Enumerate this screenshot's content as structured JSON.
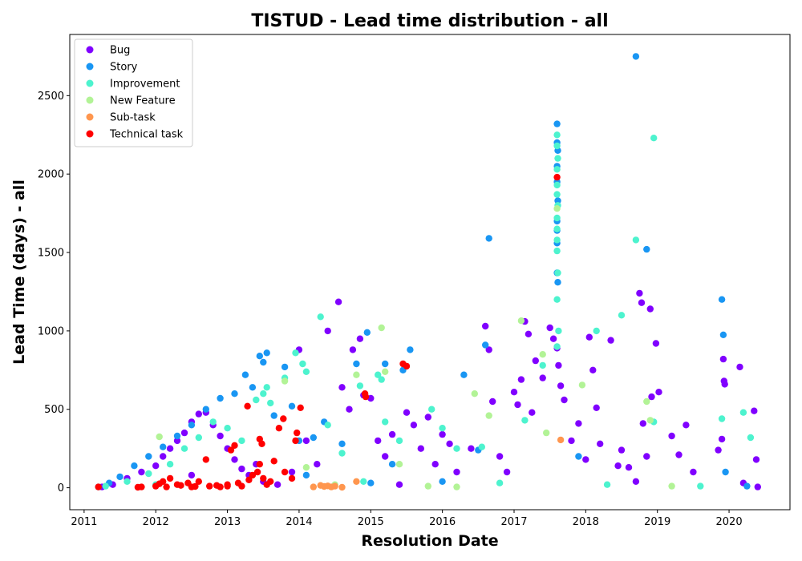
{
  "chart_data": {
    "type": "scatter",
    "title": "TISTUD - Lead time distribution - all",
    "xlabel": "Resolution Date",
    "ylabel": "Lead Time (days) - all",
    "xlim": [
      2010.8,
      2020.85
    ],
    "ylim": [
      -140,
      2890
    ],
    "x_ticks": [
      "2011",
      "2012",
      "2013",
      "2014",
      "2015",
      "2016",
      "2017",
      "2018",
      "2019",
      "2020"
    ],
    "y_ticks": [
      0,
      500,
      1000,
      1500,
      2000,
      2500
    ],
    "grid": false,
    "legend_position": "top-left",
    "series": [
      {
        "name": "Bug",
        "color": "#8000ff",
        "points": [
          [
            2011.25,
            5
          ],
          [
            2011.4,
            20
          ],
          [
            2011.6,
            60
          ],
          [
            2011.8,
            100
          ],
          [
            2012.0,
            140
          ],
          [
            2012.1,
            200
          ],
          [
            2012.2,
            250
          ],
          [
            2012.3,
            300
          ],
          [
            2012.4,
            350
          ],
          [
            2012.5,
            420
          ],
          [
            2012.6,
            470
          ],
          [
            2012.7,
            480
          ],
          [
            2012.8,
            400
          ],
          [
            2012.9,
            330
          ],
          [
            2013.0,
            250
          ],
          [
            2013.1,
            180
          ],
          [
            2013.2,
            120
          ],
          [
            2013.3,
            80
          ],
          [
            2013.5,
            40
          ],
          [
            2013.7,
            20
          ],
          [
            2013.9,
            100
          ],
          [
            2014.0,
            880
          ],
          [
            2014.1,
            300
          ],
          [
            2014.25,
            150
          ],
          [
            2014.4,
            1000
          ],
          [
            2014.55,
            1185
          ],
          [
            2014.6,
            640
          ],
          [
            2014.7,
            500
          ],
          [
            2014.75,
            880
          ],
          [
            2014.85,
            950
          ],
          [
            2014.9,
            590
          ],
          [
            2015.0,
            570
          ],
          [
            2015.1,
            300
          ],
          [
            2015.2,
            200
          ],
          [
            2015.3,
            340
          ],
          [
            2015.5,
            480
          ],
          [
            2015.6,
            400
          ],
          [
            2015.7,
            250
          ],
          [
            2015.8,
            450
          ],
          [
            2015.9,
            150
          ],
          [
            2016.0,
            340
          ],
          [
            2016.1,
            280
          ],
          [
            2016.2,
            100
          ],
          [
            2016.4,
            250
          ],
          [
            2016.6,
            1030
          ],
          [
            2016.65,
            880
          ],
          [
            2016.7,
            550
          ],
          [
            2016.8,
            200
          ],
          [
            2016.9,
            100
          ],
          [
            2017.0,
            610
          ],
          [
            2017.05,
            530
          ],
          [
            2017.1,
            690
          ],
          [
            2017.15,
            1060
          ],
          [
            2017.2,
            980
          ],
          [
            2017.25,
            480
          ],
          [
            2017.3,
            810
          ],
          [
            2017.4,
            700
          ],
          [
            2017.5,
            1020
          ],
          [
            2017.55,
            950
          ],
          [
            2017.6,
            890
          ],
          [
            2017.62,
            780
          ],
          [
            2017.65,
            650
          ],
          [
            2017.7,
            560
          ],
          [
            2017.8,
            300
          ],
          [
            2017.9,
            410
          ],
          [
            2018.0,
            180
          ],
          [
            2018.05,
            960
          ],
          [
            2018.1,
            750
          ],
          [
            2018.15,
            510
          ],
          [
            2018.2,
            280
          ],
          [
            2018.35,
            940
          ],
          [
            2018.45,
            140
          ],
          [
            2018.5,
            240
          ],
          [
            2018.6,
            130
          ],
          [
            2018.7,
            40
          ],
          [
            2018.75,
            1240
          ],
          [
            2018.78,
            1180
          ],
          [
            2018.8,
            410
          ],
          [
            2018.85,
            200
          ],
          [
            2018.9,
            1140
          ],
          [
            2018.92,
            580
          ],
          [
            2018.98,
            920
          ],
          [
            2019.02,
            610
          ],
          [
            2019.2,
            330
          ],
          [
            2019.3,
            210
          ],
          [
            2019.4,
            400
          ],
          [
            2019.5,
            100
          ],
          [
            2019.85,
            240
          ],
          [
            2019.9,
            310
          ],
          [
            2019.92,
            820
          ],
          [
            2019.93,
            680
          ],
          [
            2019.94,
            660
          ],
          [
            2020.15,
            770
          ],
          [
            2020.2,
            30
          ],
          [
            2020.35,
            490
          ],
          [
            2020.38,
            180
          ],
          [
            2020.4,
            5
          ],
          [
            2012.5,
            80
          ],
          [
            2013.4,
            150
          ],
          [
            2015.4,
            20
          ]
        ]
      },
      {
        "name": "Story",
        "color": "#1996f3",
        "points": [
          [
            2011.2,
            5
          ],
          [
            2011.35,
            30
          ],
          [
            2011.5,
            70
          ],
          [
            2011.7,
            140
          ],
          [
            2011.9,
            200
          ],
          [
            2012.1,
            260
          ],
          [
            2012.3,
            330
          ],
          [
            2012.5,
            400
          ],
          [
            2012.7,
            500
          ],
          [
            2012.9,
            570
          ],
          [
            2013.1,
            600
          ],
          [
            2013.25,
            720
          ],
          [
            2013.35,
            640
          ],
          [
            2013.45,
            840
          ],
          [
            2013.5,
            800
          ],
          [
            2013.55,
            860
          ],
          [
            2013.65,
            460
          ],
          [
            2013.8,
            770
          ],
          [
            2013.9,
            520
          ],
          [
            2014.0,
            300
          ],
          [
            2014.2,
            320
          ],
          [
            2014.35,
            420
          ],
          [
            2014.6,
            280
          ],
          [
            2014.8,
            790
          ],
          [
            2014.95,
            990
          ],
          [
            2015.2,
            790
          ],
          [
            2015.3,
            150
          ],
          [
            2015.45,
            750
          ],
          [
            2015.55,
            880
          ],
          [
            2016.3,
            720
          ],
          [
            2016.5,
            240
          ],
          [
            2016.6,
            910
          ],
          [
            2016.65,
            1590
          ],
          [
            2017.6,
            2320
          ],
          [
            2017.6,
            2200
          ],
          [
            2017.61,
            2150
          ],
          [
            2017.6,
            2050
          ],
          [
            2017.6,
            1950
          ],
          [
            2017.61,
            1830
          ],
          [
            2017.6,
            1700
          ],
          [
            2017.6,
            1640
          ],
          [
            2017.6,
            1560
          ],
          [
            2017.61,
            1310
          ],
          [
            2017.6,
            1370
          ],
          [
            2017.9,
            200
          ],
          [
            2018.7,
            2750
          ],
          [
            2018.85,
            1520
          ],
          [
            2019.9,
            1200
          ],
          [
            2019.92,
            975
          ],
          [
            2019.95,
            100
          ],
          [
            2020.25,
            10
          ],
          [
            2014.1,
            80
          ],
          [
            2015.0,
            30
          ],
          [
            2016.0,
            40
          ]
        ]
      },
      {
        "name": "Improvement",
        "color": "#4df3ce",
        "points": [
          [
            2011.3,
            10
          ],
          [
            2011.6,
            40
          ],
          [
            2011.9,
            90
          ],
          [
            2012.2,
            150
          ],
          [
            2012.4,
            250
          ],
          [
            2012.6,
            320
          ],
          [
            2012.8,
            420
          ],
          [
            2013.0,
            380
          ],
          [
            2013.2,
            300
          ],
          [
            2013.4,
            560
          ],
          [
            2013.5,
            600
          ],
          [
            2013.55,
            640
          ],
          [
            2013.6,
            540
          ],
          [
            2013.8,
            700
          ],
          [
            2013.95,
            860
          ],
          [
            2014.05,
            790
          ],
          [
            2014.1,
            740
          ],
          [
            2014.3,
            1090
          ],
          [
            2014.4,
            400
          ],
          [
            2014.6,
            220
          ],
          [
            2014.85,
            650
          ],
          [
            2015.1,
            720
          ],
          [
            2015.15,
            690
          ],
          [
            2015.2,
            420
          ],
          [
            2015.4,
            300
          ],
          [
            2015.85,
            500
          ],
          [
            2016.0,
            380
          ],
          [
            2016.2,
            250
          ],
          [
            2016.55,
            260
          ],
          [
            2017.15,
            430
          ],
          [
            2017.4,
            780
          ],
          [
            2017.6,
            2250
          ],
          [
            2017.6,
            2180
          ],
          [
            2017.61,
            2100
          ],
          [
            2017.6,
            2030
          ],
          [
            2017.6,
            1930
          ],
          [
            2017.6,
            1870
          ],
          [
            2017.61,
            1800
          ],
          [
            2017.6,
            1720
          ],
          [
            2017.6,
            1650
          ],
          [
            2017.6,
            1580
          ],
          [
            2017.6,
            1510
          ],
          [
            2017.61,
            1370
          ],
          [
            2017.6,
            1200
          ],
          [
            2017.62,
            1000
          ],
          [
            2017.6,
            900
          ],
          [
            2018.15,
            1000
          ],
          [
            2018.5,
            1100
          ],
          [
            2018.7,
            1580
          ],
          [
            2018.95,
            2230
          ],
          [
            2018.95,
            420
          ],
          [
            2019.9,
            440
          ],
          [
            2020.2,
            480
          ],
          [
            2020.3,
            320
          ],
          [
            2012.0,
            20
          ],
          [
            2014.9,
            40
          ],
          [
            2016.8,
            30
          ],
          [
            2018.3,
            20
          ],
          [
            2019.6,
            10
          ]
        ]
      },
      {
        "name": "New Feature",
        "color": "#b2f396",
        "points": [
          [
            2012.05,
            325
          ],
          [
            2013.8,
            680
          ],
          [
            2014.1,
            130
          ],
          [
            2014.8,
            720
          ],
          [
            2015.15,
            1020
          ],
          [
            2015.2,
            740
          ],
          [
            2015.4,
            150
          ],
          [
            2016.45,
            600
          ],
          [
            2016.65,
            460
          ],
          [
            2017.1,
            1065
          ],
          [
            2017.4,
            850
          ],
          [
            2017.45,
            350
          ],
          [
            2017.6,
            1780
          ],
          [
            2017.95,
            655
          ],
          [
            2018.85,
            550
          ],
          [
            2018.9,
            430
          ],
          [
            2014.5,
            20
          ],
          [
            2015.8,
            10
          ],
          [
            2016.2,
            5
          ],
          [
            2019.2,
            10
          ]
        ]
      },
      {
        "name": "Sub-task",
        "color": "#ff964e",
        "points": [
          [
            2014.2,
            5
          ],
          [
            2014.3,
            15
          ],
          [
            2014.35,
            8
          ],
          [
            2014.4,
            12
          ],
          [
            2014.45,
            5
          ],
          [
            2014.5,
            10
          ],
          [
            2014.6,
            3
          ],
          [
            2014.8,
            40
          ],
          [
            2017.65,
            305
          ]
        ]
      },
      {
        "name": "Technical task",
        "color": "#ff0000",
        "points": [
          [
            2011.2,
            5
          ],
          [
            2011.75,
            3
          ],
          [
            2011.8,
            5
          ],
          [
            2012.0,
            10
          ],
          [
            2012.05,
            25
          ],
          [
            2012.1,
            40
          ],
          [
            2012.15,
            5
          ],
          [
            2012.2,
            60
          ],
          [
            2012.3,
            20
          ],
          [
            2012.35,
            15
          ],
          [
            2012.45,
            30
          ],
          [
            2012.5,
            5
          ],
          [
            2012.6,
            40
          ],
          [
            2012.7,
            180
          ],
          [
            2012.75,
            10
          ],
          [
            2012.85,
            15
          ],
          [
            2012.9,
            5
          ],
          [
            2013.0,
            20
          ],
          [
            2013.05,
            240
          ],
          [
            2013.1,
            270
          ],
          [
            2013.15,
            30
          ],
          [
            2013.2,
            10
          ],
          [
            2013.28,
            520
          ],
          [
            2013.3,
            50
          ],
          [
            2013.35,
            80
          ],
          [
            2013.42,
            100
          ],
          [
            2013.45,
            150
          ],
          [
            2013.45,
            310
          ],
          [
            2013.48,
            280
          ],
          [
            2013.5,
            60
          ],
          [
            2013.55,
            20
          ],
          [
            2013.6,
            40
          ],
          [
            2013.65,
            170
          ],
          [
            2013.72,
            380
          ],
          [
            2013.78,
            440
          ],
          [
            2013.8,
            100
          ],
          [
            2013.9,
            60
          ],
          [
            2013.95,
            300
          ],
          [
            2013.97,
            350
          ],
          [
            2014.02,
            510
          ],
          [
            2014.92,
            600
          ],
          [
            2014.93,
            580
          ],
          [
            2015.45,
            790
          ],
          [
            2015.5,
            775
          ],
          [
            2017.6,
            1980
          ],
          [
            2013.0,
            10
          ],
          [
            2012.55,
            8
          ]
        ]
      }
    ]
  }
}
